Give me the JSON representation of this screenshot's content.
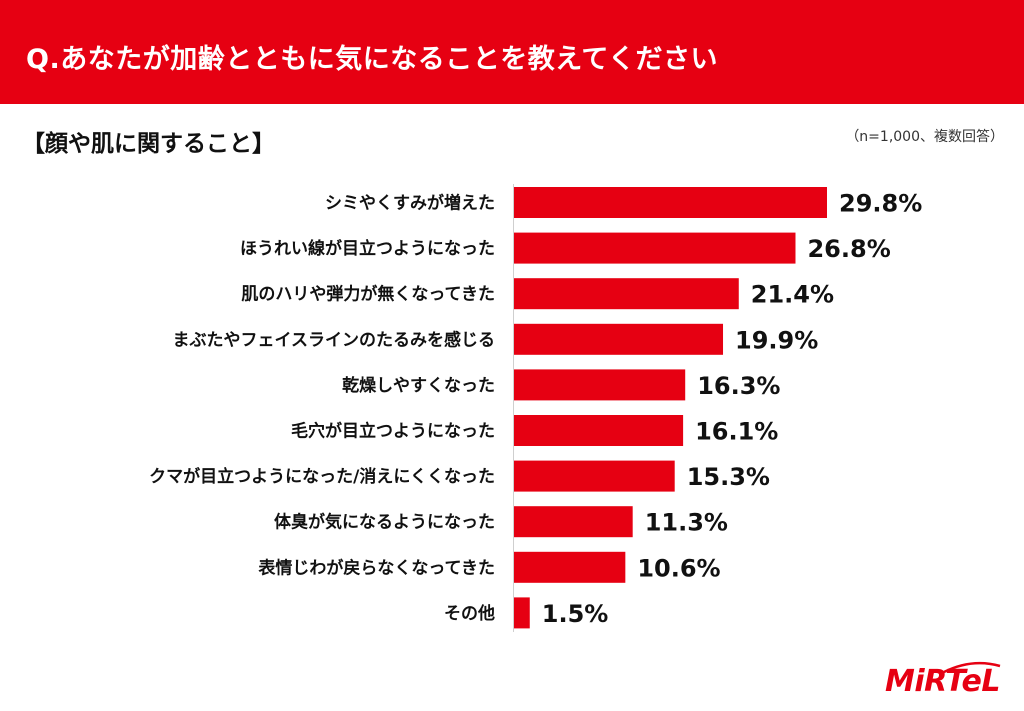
{
  "header": {
    "title": "Q.あなたが加齢とともに気になることを教えてください"
  },
  "section": {
    "title": "【顔や肌に関すること】",
    "sample_note": "（n=1,000、複数回答）"
  },
  "logo": {
    "text": "MiRTeL"
  },
  "colors": {
    "accent": "#e60012",
    "bar": "#e60012"
  },
  "chart_data": {
    "type": "bar",
    "orientation": "horizontal",
    "categories": [
      "シミやくすみが増えた",
      "ほうれい線が目立つようになった",
      "肌のハリや弾力が無くなってきた",
      "まぶたやフェイスラインのたるみを感じる",
      "乾燥しやすくなった",
      "毛穴が目立つようになった",
      "クマが目立つようになった/消えにくくなった",
      "体臭が気になるようになった",
      "表情じわが戻らなくなってきた",
      "その他"
    ],
    "values": [
      29.8,
      26.8,
      21.4,
      19.9,
      16.3,
      16.1,
      15.3,
      11.3,
      10.6,
      1.5
    ],
    "labels": [
      "29.8%",
      "26.8%",
      "21.4%",
      "19.9%",
      "16.3%",
      "16.1%",
      "15.3%",
      "11.3%",
      "10.6%",
      "1.5%"
    ],
    "unit": "%",
    "xlim": [
      0,
      30
    ],
    "grid": false,
    "legend": "none"
  }
}
